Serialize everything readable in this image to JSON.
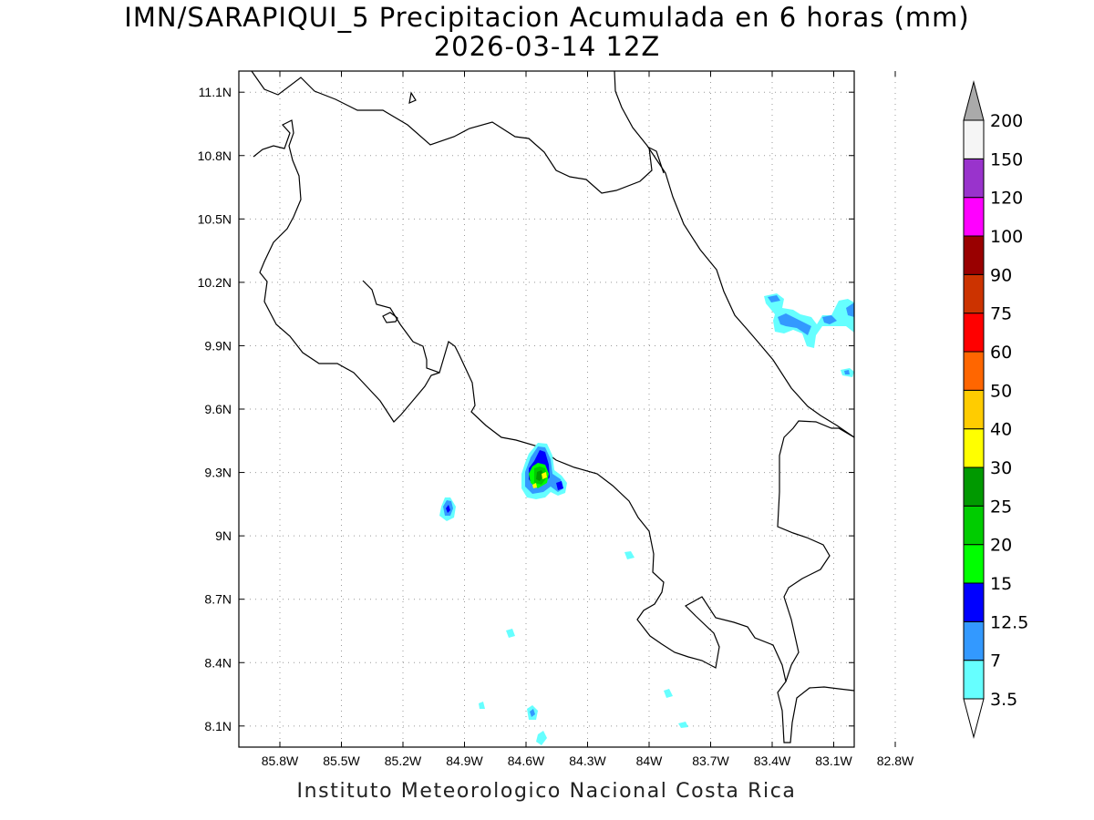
{
  "map": {
    "title_line1": "IMN/SARAPIQUI_5 Precipitacion Acumulada en 6 horas (mm)",
    "title_line2": "2026-03-14 12Z",
    "footer": "Instituto Meteorologico Nacional Costa Rica",
    "lon_range": [
      -86.0,
      -83.0
    ],
    "lat_range": [
      8.0,
      11.2
    ],
    "lon_ticks": [
      {
        "value": -85.8,
        "label": "85.8W"
      },
      {
        "value": -85.5,
        "label": "85.5W"
      },
      {
        "value": -85.2,
        "label": "85.2W"
      },
      {
        "value": -84.9,
        "label": "84.9W"
      },
      {
        "value": -84.6,
        "label": "84.6W"
      },
      {
        "value": -84.3,
        "label": "84.3W"
      },
      {
        "value": -84.0,
        "label": "84W"
      },
      {
        "value": -83.7,
        "label": "83.7W"
      },
      {
        "value": -83.4,
        "label": "83.4W"
      },
      {
        "value": -83.1,
        "label": "83.1W"
      },
      {
        "value": -82.8,
        "label": "82.8W"
      }
    ],
    "lat_ticks": [
      {
        "value": 11.1,
        "label": "11.1N"
      },
      {
        "value": 10.8,
        "label": "10.8N"
      },
      {
        "value": 10.5,
        "label": "10.5N"
      },
      {
        "value": 10.2,
        "label": "10.2N"
      },
      {
        "value": 9.9,
        "label": "9.9N"
      },
      {
        "value": 9.6,
        "label": "9.6N"
      },
      {
        "value": 9.3,
        "label": "9.3N"
      },
      {
        "value": 9.0,
        "label": "9N"
      },
      {
        "value": 8.7,
        "label": "8.7N"
      },
      {
        "value": 8.4,
        "label": "8.4N"
      },
      {
        "value": 8.1,
        "label": "8.1N"
      }
    ],
    "grid": true,
    "colorbar": {
      "levels": [
        {
          "label": "3.5",
          "color": "#66ffff"
        },
        {
          "label": "7",
          "color": "#3399ff"
        },
        {
          "label": "12.5",
          "color": "#0000ff"
        },
        {
          "label": "15",
          "color": "#00ff00"
        },
        {
          "label": "20",
          "color": "#00cc00"
        },
        {
          "label": "25",
          "color": "#009900"
        },
        {
          "label": "30",
          "color": "#ffff00"
        },
        {
          "label": "40",
          "color": "#ffcc00"
        },
        {
          "label": "50",
          "color": "#ff6600"
        },
        {
          "label": "60",
          "color": "#ff0000"
        },
        {
          "label": "75",
          "color": "#cc3300"
        },
        {
          "label": "90",
          "color": "#990000"
        },
        {
          "label": "100",
          "color": "#ff00ff"
        },
        {
          "label": "120",
          "color": "#9933cc"
        },
        {
          "label": "150",
          "color": "#f5f5f5"
        },
        {
          "label": "200",
          "color": "#aaaaaa"
        }
      ]
    }
  }
}
